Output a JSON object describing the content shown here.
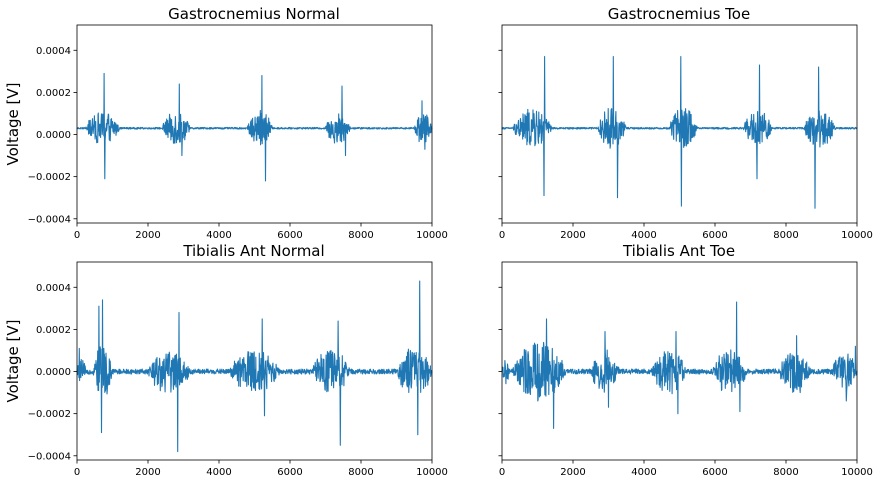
{
  "chart_data": [
    {
      "type": "line",
      "title": "Gastrocnemius Normal",
      "ylabel": "Voltage [V]",
      "xlim": [
        0,
        10000
      ],
      "ylim": [
        -0.00042,
        0.00052
      ],
      "x_ticks": [
        0,
        2000,
        4000,
        6000,
        8000,
        10000
      ],
      "x_tick_labels": [
        "0",
        "2000",
        "4000",
        "6000",
        "8000",
        "10000"
      ],
      "y_ticks": [
        0.0004,
        0.0002,
        0.0,
        -0.0002,
        -0.0004
      ],
      "y_tick_labels": [
        "0.0004",
        "0.0002",
        "0.0000",
        "−0.0002",
        "−0.0004"
      ],
      "baseline": 3e-05,
      "noise": 4e-06,
      "bursts": [
        {
          "start": 250,
          "end": 1200,
          "amp": 8e-05,
          "peaks": [
            [
              760,
              0.00029
            ],
            [
              780,
              -0.00021
            ]
          ]
        },
        {
          "start": 2400,
          "end": 3200,
          "amp": 8e-05,
          "peaks": [
            [
              2880,
              0.00024
            ],
            [
              2950,
              -0.0001
            ]
          ]
        },
        {
          "start": 4800,
          "end": 5500,
          "amp": 9e-05,
          "peaks": [
            [
              5210,
              0.00028
            ],
            [
              5310,
              -0.00022
            ]
          ]
        },
        {
          "start": 7000,
          "end": 7700,
          "amp": 8e-05,
          "peaks": [
            [
              7460,
              0.00023
            ],
            [
              7560,
              -0.0001
            ]
          ]
        },
        {
          "start": 9500,
          "end": 10000,
          "amp": 8e-05,
          "peaks": [
            [
              9720,
              0.00016
            ],
            [
              9800,
              -7e-05
            ]
          ]
        }
      ]
    },
    {
      "type": "line",
      "title": "Gastrocnemius Toe",
      "ylabel": "",
      "xlim": [
        0,
        10000
      ],
      "ylim": [
        -0.00042,
        0.00052
      ],
      "x_ticks": [
        0,
        2000,
        4000,
        6000,
        8000,
        10000
      ],
      "x_tick_labels": [
        "0",
        "2000",
        "4000",
        "6000",
        "8000",
        "10000"
      ],
      "y_ticks": [
        0.0004,
        0.0002,
        0.0,
        -0.0002,
        -0.0004
      ],
      "y_tick_labels": [],
      "baseline": 3e-05,
      "noise": 4e-06,
      "bursts": [
        {
          "start": 300,
          "end": 1400,
          "amp": 9e-05,
          "peaks": [
            [
              1200,
              0.00037
            ],
            [
              1180,
              -0.00029
            ]
          ]
        },
        {
          "start": 2700,
          "end": 3500,
          "amp": 0.0001,
          "peaks": [
            [
              3140,
              0.00037
            ],
            [
              3250,
              -0.0003
            ]
          ]
        },
        {
          "start": 4700,
          "end": 5500,
          "amp": 0.0001,
          "peaks": [
            [
              5040,
              0.00037
            ],
            [
              5050,
              -0.00034
            ]
          ]
        },
        {
          "start": 6800,
          "end": 7600,
          "amp": 9e-05,
          "peaks": [
            [
              7250,
              0.00033
            ],
            [
              7180,
              -0.00021
            ]
          ]
        },
        {
          "start": 8500,
          "end": 9400,
          "amp": 9e-05,
          "peaks": [
            [
              8920,
              0.00032
            ],
            [
              8820,
              -0.00035
            ]
          ]
        }
      ]
    },
    {
      "type": "line",
      "title": "Tibialis Ant Normal",
      "ylabel": "Voltage [V]",
      "xlim": [
        0,
        10000
      ],
      "ylim": [
        -0.00042,
        0.00052
      ],
      "x_ticks": [
        0,
        2000,
        4000,
        6000,
        8000,
        10000
      ],
      "x_tick_labels": [
        "0",
        "2000",
        "4000",
        "6000",
        "8000",
        "10000"
      ],
      "y_ticks": [
        0.0004,
        0.0002,
        0.0,
        -0.0002,
        -0.0004
      ],
      "y_tick_labels": [
        "0.0004",
        "0.0002",
        "0.0000",
        "−0.0002",
        "−0.0004"
      ],
      "baseline": 0.0,
      "noise": 1.2e-05,
      "bursts": [
        {
          "start": 0,
          "end": 250,
          "amp": 5e-05,
          "peaks": [
            [
              60,
              0.00011
            ]
          ]
        },
        {
          "start": 450,
          "end": 1000,
          "amp": 0.00012,
          "peaks": [
            [
              620,
              0.00031
            ],
            [
              720,
              0.00034
            ],
            [
              690,
              -0.00029
            ]
          ]
        },
        {
          "start": 2000,
          "end": 3200,
          "amp": 0.0001,
          "peaks": [
            [
              2870,
              0.00028
            ],
            [
              2840,
              -0.00038
            ]
          ]
        },
        {
          "start": 4300,
          "end": 5700,
          "amp": 0.0001,
          "peaks": [
            [
              5220,
              0.00025
            ],
            [
              5280,
              -0.00021
            ]
          ]
        },
        {
          "start": 6600,
          "end": 7700,
          "amp": 0.0001,
          "peaks": [
            [
              7350,
              0.00024
            ],
            [
              7420,
              -0.00035
            ]
          ]
        },
        {
          "start": 9000,
          "end": 10000,
          "amp": 0.00011,
          "peaks": [
            [
              9650,
              0.00043
            ],
            [
              9600,
              -0.0003
            ]
          ]
        }
      ]
    },
    {
      "type": "line",
      "title": "Tibialis Ant Toe",
      "ylabel": "",
      "xlim": [
        0,
        10000
      ],
      "ylim": [
        -0.00042,
        0.00052
      ],
      "x_ticks": [
        0,
        2000,
        4000,
        6000,
        8000,
        10000
      ],
      "x_tick_labels": [
        "0",
        "2000",
        "4000",
        "6000",
        "8000",
        "10000"
      ],
      "y_ticks": [
        0.0004,
        0.0002,
        0.0,
        -0.0002,
        -0.0004
      ],
      "y_tick_labels": [],
      "baseline": 0.0,
      "noise": 1.2e-05,
      "bursts": [
        {
          "start": 0,
          "end": 200,
          "amp": 5e-05,
          "peaks": []
        },
        {
          "start": 300,
          "end": 1800,
          "amp": 0.00014,
          "peaks": [
            [
              1250,
              0.00025
            ],
            [
              1450,
              -0.00027
            ]
          ]
        },
        {
          "start": 2500,
          "end": 3300,
          "amp": 0.0001,
          "peaks": [
            [
              2900,
              0.00019
            ],
            [
              3000,
              -0.00017
            ]
          ]
        },
        {
          "start": 4200,
          "end": 5200,
          "amp": 0.0001,
          "peaks": [
            [
              4900,
              0.00019
            ],
            [
              4950,
              -0.0002
            ]
          ]
        },
        {
          "start": 5900,
          "end": 6900,
          "amp": 0.0001,
          "peaks": [
            [
              6610,
              0.00033
            ],
            [
              6700,
              -0.00019
            ]
          ]
        },
        {
          "start": 7800,
          "end": 8700,
          "amp": 9e-05,
          "peaks": [
            [
              8300,
              0.00017
            ],
            [
              8400,
              -0.0001
            ]
          ]
        },
        {
          "start": 9300,
          "end": 10000,
          "amp": 9e-05,
          "peaks": [
            [
              9950,
              0.00012
            ],
            [
              9700,
              -0.00014
            ]
          ]
        }
      ]
    }
  ],
  "colors": {
    "line": "#1f77b4",
    "axis": "#000000",
    "background": "#ffffff"
  }
}
